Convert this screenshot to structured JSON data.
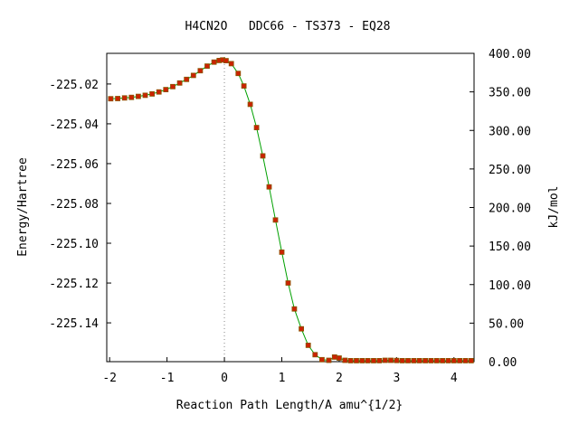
{
  "chart_data": {
    "type": "line",
    "title": "H4CN2O   DDC66 - TS373 - EQ28",
    "xlabel": "Reaction Path Length/A amu^{1/2}",
    "ylabel": "Energy/Hartree",
    "y2label": "kJ/mol",
    "xlim": [
      -2.05,
      4.35
    ],
    "ylim": [
      -225.1595,
      -225.0046
    ],
    "y2lim": [
      0,
      400
    ],
    "x_ticks": [
      -2,
      -1,
      0,
      1,
      2,
      3,
      4
    ],
    "x_tick_labels": [
      "-2",
      "-1",
      "0",
      "1",
      "2",
      "3",
      "4"
    ],
    "y_ticks": [
      -225.02,
      -225.04,
      -225.06,
      -225.08,
      -225.1,
      -225.12,
      -225.14
    ],
    "y_tick_labels": [
      "-225.02",
      "-225.04",
      "-225.06",
      "-225.08",
      "-225.10",
      "-225.12",
      "-225.14"
    ],
    "y2_ticks": [
      0,
      50,
      100,
      150,
      200,
      250,
      300,
      350,
      400
    ],
    "y2_tick_labels": [
      "0.00",
      "50.00",
      "100.00",
      "150.00",
      "200.00",
      "250.00",
      "300.00",
      "350.00",
      "400.00"
    ],
    "ts_marker_x": 0,
    "line_color": "#00a000",
    "point_color": "#cc2200",
    "point_edge_color": "#885500",
    "grid": false,
    "x": [
      -1.98,
      -1.86,
      -1.74,
      -1.62,
      -1.5,
      -1.38,
      -1.26,
      -1.14,
      -1.02,
      -0.9,
      -0.78,
      -0.66,
      -0.54,
      -0.42,
      -0.3,
      -0.18,
      -0.09,
      -0.03,
      0.03,
      0.12,
      0.24,
      0.34,
      0.45,
      0.56,
      0.67,
      0.78,
      0.89,
      1.0,
      1.11,
      1.22,
      1.34,
      1.46,
      1.58,
      1.7,
      1.82,
      1.92,
      2.0,
      2.1,
      2.2,
      2.3,
      2.4,
      2.5,
      2.6,
      2.7,
      2.8,
      2.9,
      3.0,
      3.1,
      3.2,
      3.3,
      3.4,
      3.5,
      3.6,
      3.7,
      3.8,
      3.9,
      4.0,
      4.1,
      4.2,
      4.3
    ],
    "y": [
      -225.0274,
      -225.0273,
      -225.027,
      -225.0267,
      -225.0262,
      -225.0257,
      -225.025,
      -225.024,
      -225.0228,
      -225.0213,
      -225.0195,
      -225.0177,
      -225.0157,
      -225.0133,
      -225.011,
      -225.009,
      -225.0082,
      -225.0079,
      -225.0083,
      -225.0098,
      -225.0147,
      -225.021,
      -225.0302,
      -225.0419,
      -225.0561,
      -225.0717,
      -225.0883,
      -225.1045,
      -225.12,
      -225.133,
      -225.143,
      -225.1513,
      -225.156,
      -225.1585,
      -225.1588,
      -225.1572,
      -225.1577,
      -225.1588,
      -225.159,
      -225.159,
      -225.159,
      -225.159,
      -225.159,
      -225.159,
      -225.1588,
      -225.1588,
      -225.1589,
      -225.159,
      -225.159,
      -225.159,
      -225.159,
      -225.159,
      -225.159,
      -225.159,
      -225.159,
      -225.159,
      -225.159,
      -225.159,
      -225.159,
      -225.159
    ]
  }
}
